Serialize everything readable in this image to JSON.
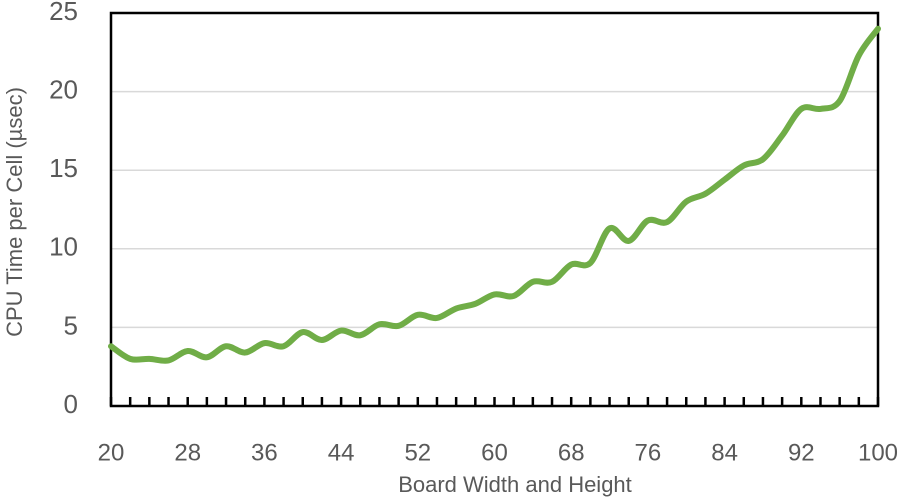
{
  "chart_data": {
    "type": "line",
    "x_label": "Board Width and Height",
    "y_label": "CPU Time per Cell (µsec)",
    "x": [
      20,
      22,
      24,
      26,
      28,
      30,
      32,
      34,
      36,
      38,
      40,
      42,
      44,
      46,
      48,
      50,
      52,
      54,
      56,
      58,
      60,
      62,
      64,
      66,
      68,
      70,
      72,
      74,
      76,
      78,
      80,
      82,
      84,
      86,
      88,
      90,
      92,
      94,
      96,
      98,
      100
    ],
    "series": [
      {
        "color": "#70ad47",
        "values": [
          3.8,
          3.0,
          3.0,
          2.9,
          3.5,
          3.1,
          3.8,
          3.4,
          4.0,
          3.8,
          4.7,
          4.2,
          4.8,
          4.5,
          5.2,
          5.1,
          5.8,
          5.6,
          6.2,
          6.5,
          7.1,
          7.0,
          7.9,
          7.9,
          9.0,
          9.1,
          11.3,
          10.5,
          11.8,
          11.7,
          13.0,
          13.5,
          14.4,
          15.3,
          15.7,
          17.2,
          18.9,
          18.9,
          19.4,
          22.3,
          24.0
        ]
      }
    ],
    "xlim": [
      20,
      100
    ],
    "xticks": [
      20,
      28,
      36,
      44,
      52,
      60,
      68,
      76,
      84,
      92,
      100
    ],
    "ylim": [
      0,
      25
    ],
    "yticks": [
      0,
      5,
      10,
      15,
      20,
      25
    ],
    "grid": true
  }
}
